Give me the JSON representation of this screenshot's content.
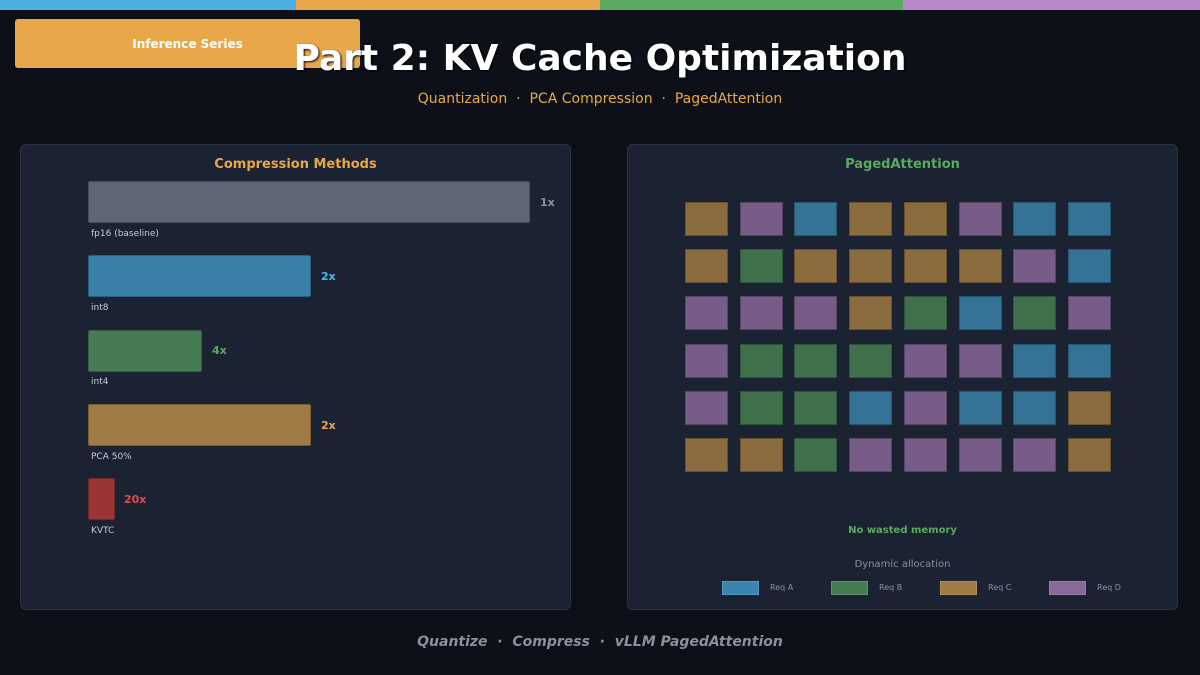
{
  "stripe_colors": [
    "#4aafe0",
    "#e8a84a",
    "#5aaa60",
    "#b888c8"
  ],
  "header": {
    "badge": "Inference Series",
    "title": "Part 2: KV Cache Optimization",
    "subtitle": "Quantization  ·  PCA Compression  ·  PagedAttention"
  },
  "compression": {
    "title": "Compression Methods",
    "methods": [
      {
        "label": "fp16 (baseline)",
        "value": "1x",
        "color": "#5f6775",
        "value_color": "#8a919c"
      },
      {
        "label": "int8",
        "value": "2x",
        "color": "#3980a8",
        "value_color": "#4ab8f0"
      },
      {
        "label": "int4",
        "value": "4x",
        "color": "#467c54",
        "value_color": "#5aaa60"
      },
      {
        "label": "PCA 50%",
        "value": "2x",
        "color": "#a07b43",
        "value_color": "#e8a84a"
      },
      {
        "label": "KVTC",
        "value": "20x",
        "color": "#9b3535",
        "value_color": "#e84848"
      }
    ]
  },
  "chart_data": {
    "type": "bar",
    "title": "Compression Methods",
    "categories": [
      "fp16 (baseline)",
      "int8",
      "int4",
      "PCA 50%",
      "KVTC"
    ],
    "values": [
      1,
      2,
      4,
      2,
      20
    ],
    "value_labels": [
      "1x",
      "2x",
      "4x",
      "2x",
      "20x"
    ],
    "relative_bar_length": [
      1.0,
      0.5,
      0.25,
      0.5,
      0.05
    ],
    "orientation": "horizontal",
    "xlabel": "",
    "ylabel": ""
  },
  "paged": {
    "title": "PagedAttention",
    "grid": [
      [
        "C",
        "D",
        "A",
        "C",
        "C",
        "D",
        "A",
        "A"
      ],
      [
        "C",
        "B",
        "C",
        "C",
        "C",
        "C",
        "D",
        "A"
      ],
      [
        "D",
        "D",
        "D",
        "C",
        "B",
        "A",
        "B",
        "D"
      ],
      [
        "D",
        "B",
        "B",
        "B",
        "D",
        "D",
        "A",
        "A"
      ],
      [
        "D",
        "B",
        "B",
        "A",
        "D",
        "A",
        "A",
        "C"
      ],
      [
        "C",
        "C",
        "B",
        "D",
        "D",
        "D",
        "D",
        "C"
      ]
    ],
    "block_colors": {
      "A": "#347396",
      "B": "#41704c",
      "C": "#8a6c3e",
      "D": "#765c86"
    },
    "note": "No wasted memory",
    "caption": "Dynamic allocation",
    "legend": [
      {
        "key": "A",
        "label": "Req A",
        "color": "#3a85b0"
      },
      {
        "key": "B",
        "label": "Req B",
        "color": "#467c54"
      },
      {
        "key": "C",
        "label": "Req C",
        "color": "#a07b43"
      },
      {
        "key": "D",
        "label": "Req D",
        "color": "#8a6898"
      }
    ]
  },
  "footer": "Quantize  ·  Compress  ·  vLLM PagedAttention"
}
